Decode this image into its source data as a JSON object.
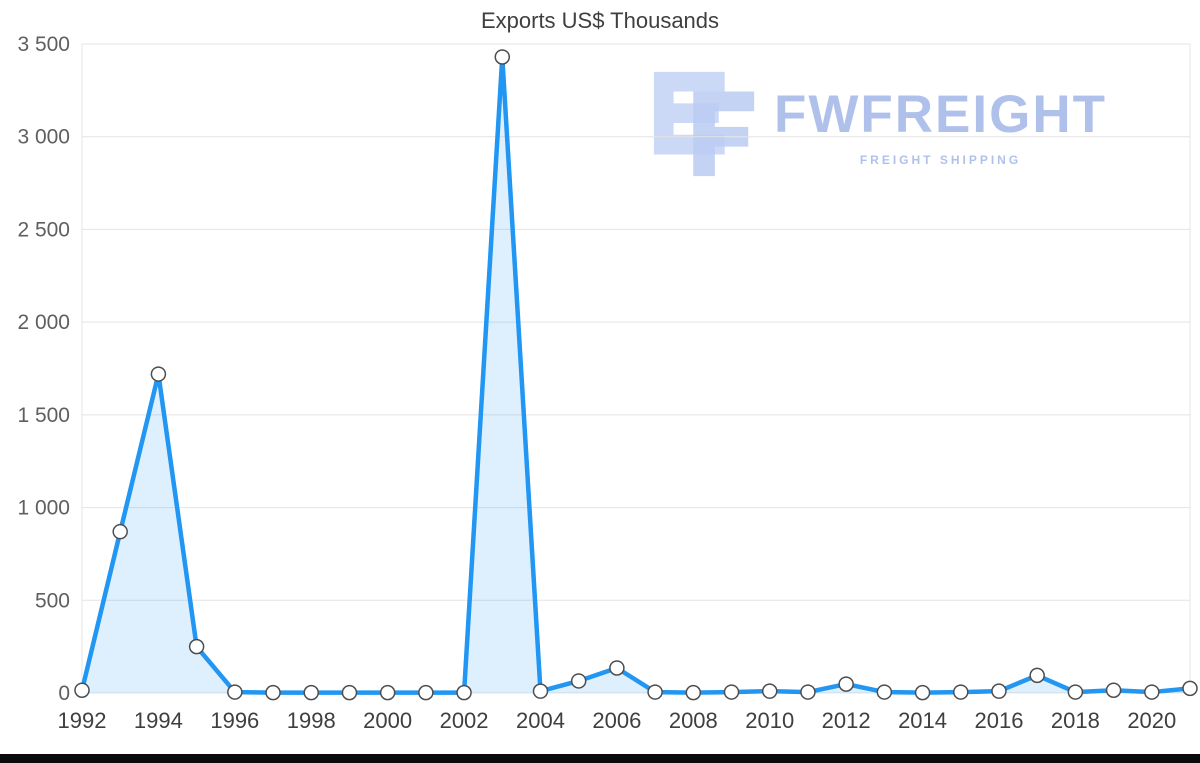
{
  "title": "Exports US$ Thousands",
  "watermark": {
    "brand": "FWFREIGHT",
    "tagline": "FREIGHT SHIPPING",
    "color": "#a7bbe9"
  },
  "chart_data": {
    "type": "area",
    "title": "Exports US$ Thousands",
    "xlabel": "",
    "ylabel": "",
    "x": [
      1992,
      1993,
      1994,
      1995,
      1996,
      1997,
      1998,
      1999,
      2000,
      2001,
      2002,
      2003,
      2004,
      2005,
      2006,
      2007,
      2008,
      2009,
      2010,
      2011,
      2012,
      2013,
      2014,
      2015,
      2016,
      2017,
      2018,
      2019,
      2020,
      2021
    ],
    "values": [
      15,
      870,
      1720,
      250,
      5,
      2,
      2,
      2,
      2,
      2,
      2,
      3430,
      10,
      65,
      135,
      5,
      2,
      5,
      10,
      5,
      48,
      5,
      2,
      5,
      10,
      95,
      5,
      15,
      5,
      25
    ],
    "ylim": [
      0,
      3500
    ],
    "yticks": [
      0,
      500,
      1000,
      1500,
      2000,
      2500,
      3000,
      3500
    ],
    "ytick_labels": [
      "0",
      "500",
      "1 000",
      "1 500",
      "2 000",
      "2 500",
      "3 000",
      "3 500"
    ],
    "xtick_every": 2,
    "grid": true,
    "legend": "none",
    "line_color": "#2196f3",
    "fill_color": "rgba(33,150,243,0.15)",
    "marker_fill": "#ffffff",
    "marker_stroke": "#4d4d4d",
    "grid_color": "#e4e4e4",
    "axis_label_color": "#5f5f5f",
    "xtick_label_color": "#3f3f3f"
  }
}
